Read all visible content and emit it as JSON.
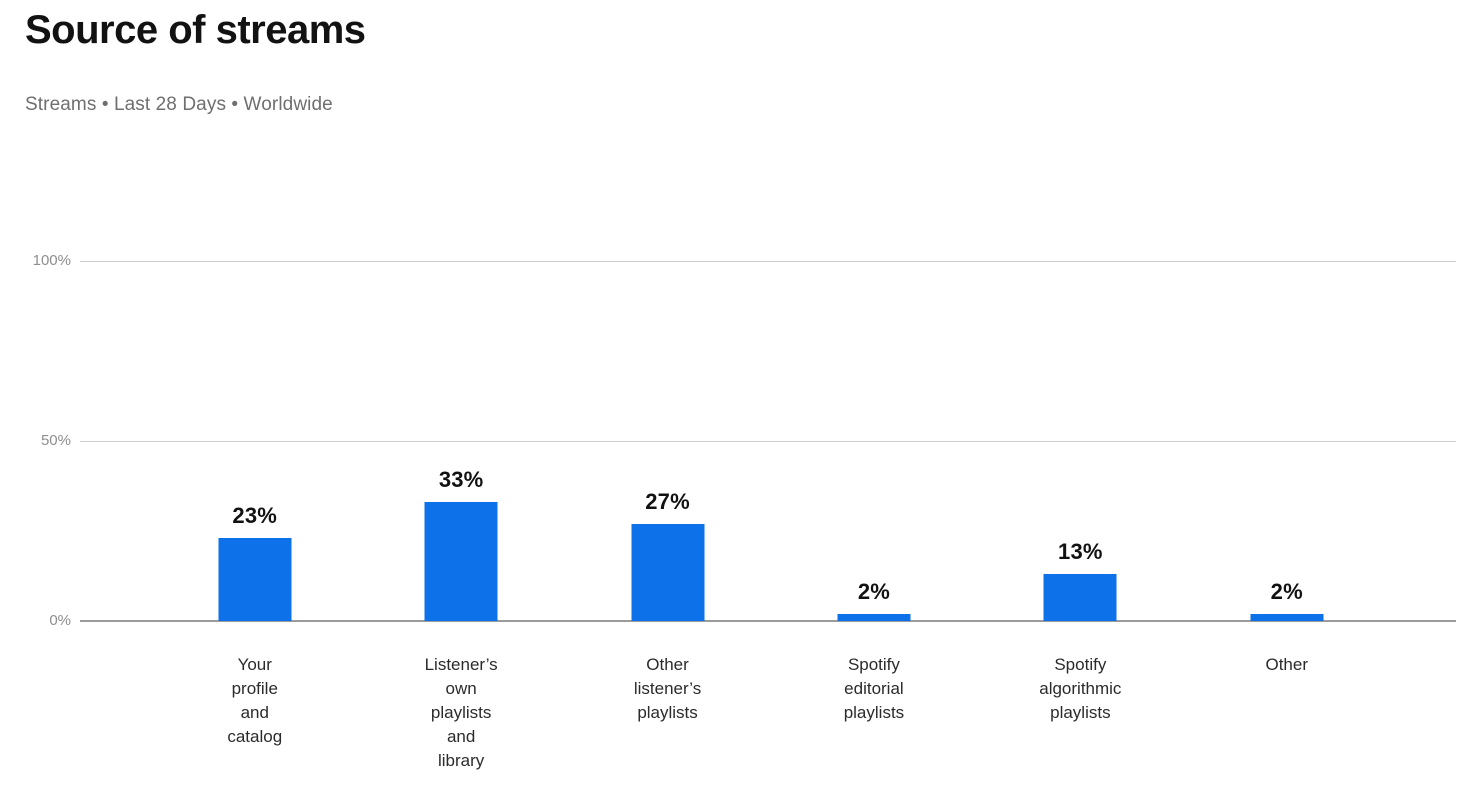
{
  "header": {
    "title": "Source of streams",
    "subtitle": "Streams • Last 28 Days • Worldwide"
  },
  "chart_data": {
    "type": "bar",
    "title": "Source of streams",
    "subtitle": "Streams • Last 28 Days • Worldwide",
    "categories": [
      "Your profile and catalog",
      "Listener’s own playlists and library",
      "Other listener’s playlists",
      "Spotify editorial playlists",
      "Spotify algorithmic playlists",
      "Other"
    ],
    "category_label_lines": [
      [
        "Your",
        "profile",
        "and",
        "catalog"
      ],
      [
        "Listener’s",
        "own",
        "playlists",
        "and",
        "library"
      ],
      [
        "Other",
        "listener’s",
        "playlists"
      ],
      [
        "Spotify",
        "editorial",
        "playlists"
      ],
      [
        "Spotify",
        "algorithmic",
        "playlists"
      ],
      [
        "Other"
      ]
    ],
    "values": [
      23,
      33,
      27,
      2,
      13,
      2
    ],
    "value_labels": [
      "23%",
      "33%",
      "27%",
      "2%",
      "13%",
      "2%"
    ],
    "unit": "%",
    "xlabel": "",
    "ylabel": "",
    "ylim": [
      0,
      100
    ],
    "yticks": [
      100,
      50,
      0
    ],
    "ytick_labels": [
      "100%",
      "50%",
      "0%"
    ],
    "grid": "horizontal",
    "legend": "none",
    "bar_color": "#0d72ea",
    "gridline_color": "#cdcdcd",
    "axis_color": "#9b9b9b"
  }
}
